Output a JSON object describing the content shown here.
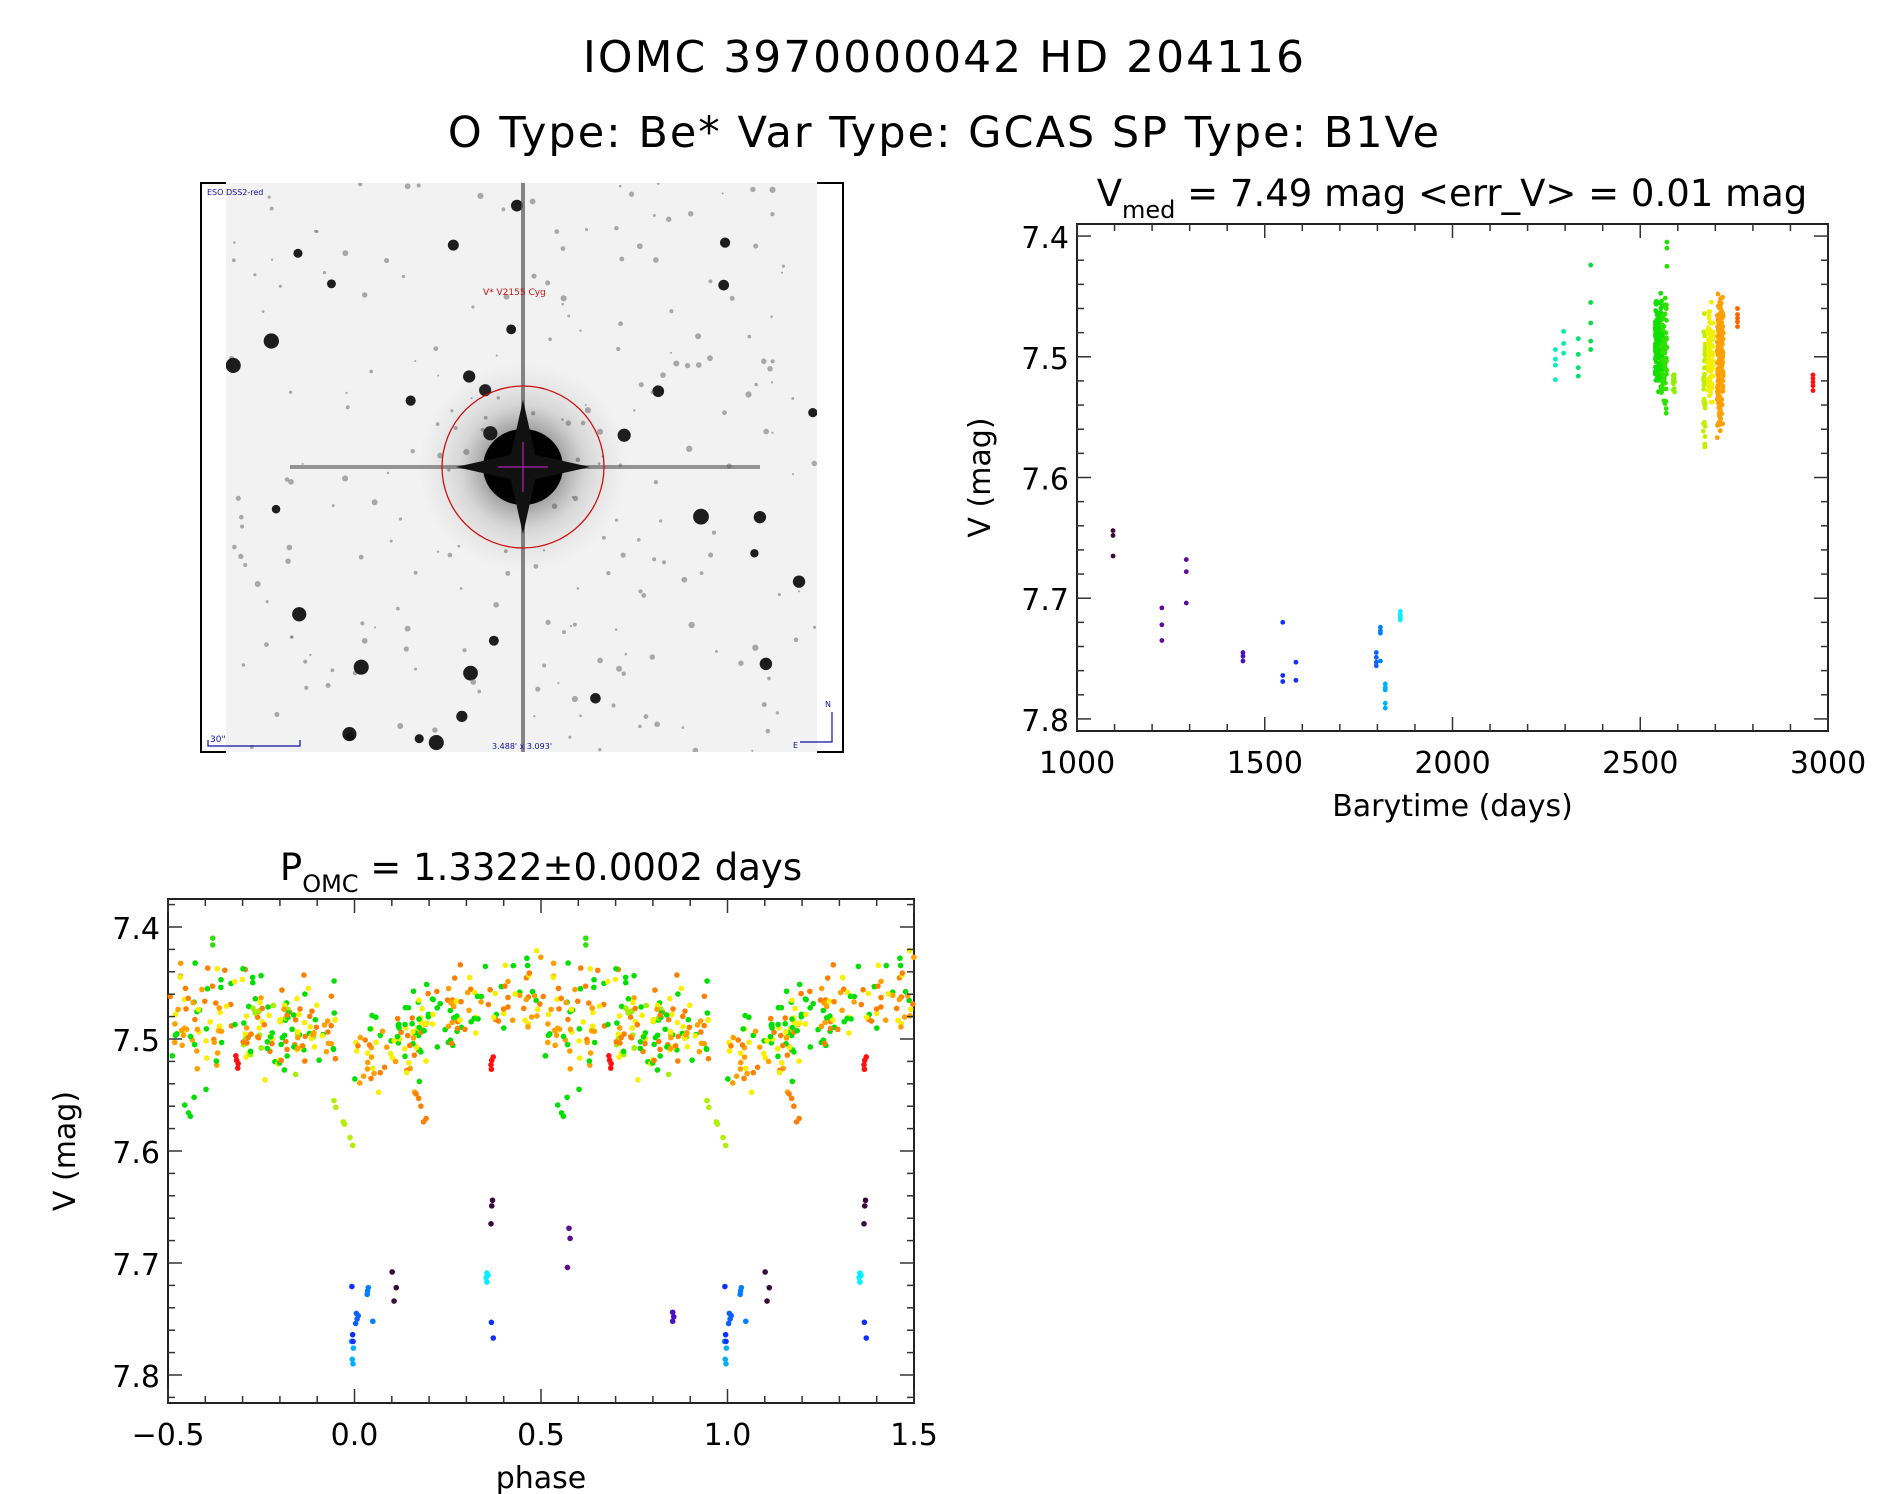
{
  "header": {
    "line1": "IOMC 3970000042    HD 204116",
    "line2": "O Type: Be*  Var Type: GCAS  SP Type: B1Ve"
  },
  "image_panel": {
    "survey_label": "ESO DSS2-red",
    "object_label": "V* V2155 Cyg",
    "scale_label": "30\"",
    "fov_label": "3.488' x 3.093'",
    "north_label": "N",
    "east_label": "E",
    "colors": {
      "object_label": "#d01010",
      "annotations": "#1010a0",
      "circle": "#cc1010",
      "crosshair": "#b020b0"
    }
  },
  "chart_data": [
    {
      "type": "scatter",
      "id": "lightcurve",
      "title_main": "V",
      "title_sub": "med",
      "title_rest": " = 7.49 mag <err_V> = 0.01 mag",
      "xlabel": "Barytime (days)",
      "ylabel": "V (mag)",
      "xlim": [
        1000,
        3000
      ],
      "ylim": [
        7.39,
        7.81
      ],
      "y_inverted": true,
      "xticks": [
        1000,
        1500,
        2000,
        2500,
        3000
      ],
      "xtick_labels": [
        "1000",
        "1500",
        "2000",
        "2500",
        "3000"
      ],
      "x_minor_step": 100,
      "yticks": [
        7.4,
        7.5,
        7.6,
        7.7,
        7.8
      ],
      "ytick_labels": [
        "7.4",
        "7.5",
        "7.6",
        "7.7",
        "7.8"
      ],
      "y_minor_step": 0.02,
      "points": [
        [
          1096,
          7.644,
          "#3a0a3a"
        ],
        [
          1096,
          7.648,
          "#3a0a3a"
        ],
        [
          1096,
          7.665,
          "#3a0a3a"
        ],
        [
          1226,
          7.708,
          "#5a1090"
        ],
        [
          1226,
          7.722,
          "#5a1090"
        ],
        [
          1226,
          7.735,
          "#5a1090"
        ],
        [
          1291,
          7.668,
          "#5a1090"
        ],
        [
          1291,
          7.678,
          "#5a1090"
        ],
        [
          1291,
          7.704,
          "#5a1090"
        ],
        [
          1442,
          7.745,
          "#4b10c0"
        ],
        [
          1442,
          7.748,
          "#4b10c0"
        ],
        [
          1442,
          7.752,
          "#4b10c0"
        ],
        [
          1548,
          7.72,
          "#1030ff"
        ],
        [
          1548,
          7.764,
          "#1030ff"
        ],
        [
          1548,
          7.769,
          "#1030ff"
        ],
        [
          1583,
          7.753,
          "#1030ff"
        ],
        [
          1583,
          7.768,
          "#1030ff"
        ],
        [
          1797,
          7.745,
          "#1060ff"
        ],
        [
          1797,
          7.749,
          "#1060ff"
        ],
        [
          1797,
          7.753,
          "#1060ff"
        ],
        [
          1797,
          7.756,
          "#1060ff"
        ],
        [
          1808,
          7.724,
          "#0080ff"
        ],
        [
          1808,
          7.727,
          "#0080ff"
        ],
        [
          1808,
          7.729,
          "#0080ff"
        ],
        [
          1808,
          7.752,
          "#0080ff"
        ],
        [
          1821,
          7.771,
          "#00b0ff"
        ],
        [
          1821,
          7.774,
          "#00b0ff"
        ],
        [
          1821,
          7.776,
          "#00b0ff"
        ],
        [
          1821,
          7.787,
          "#00b0ff"
        ],
        [
          1821,
          7.791,
          "#00b0ff"
        ],
        [
          1861,
          7.711,
          "#00f0ff"
        ],
        [
          1861,
          7.714,
          "#00f0ff"
        ],
        [
          1861,
          7.716,
          "#00f0ff"
        ],
        [
          1861,
          7.718,
          "#00f0ff"
        ],
        [
          2274,
          7.494,
          "#00f0c0"
        ],
        [
          2274,
          7.502,
          "#00f0c0"
        ],
        [
          2274,
          7.507,
          "#00f0c0"
        ],
        [
          2274,
          7.519,
          "#00f0c0"
        ],
        [
          2296,
          7.479,
          "#00f0a0"
        ],
        [
          2296,
          7.489,
          "#00f0a0"
        ],
        [
          2296,
          7.497,
          "#00f0a0"
        ],
        [
          2335,
          7.485,
          "#00e070"
        ],
        [
          2335,
          7.498,
          "#00e070"
        ],
        [
          2335,
          7.509,
          "#00e070"
        ],
        [
          2335,
          7.516,
          "#00e070"
        ],
        [
          2368,
          7.424,
          "#00e040"
        ],
        [
          2368,
          7.455,
          "#00e040"
        ],
        [
          2368,
          7.472,
          "#00e040"
        ],
        [
          2368,
          7.487,
          "#00e040"
        ],
        [
          2368,
          7.494,
          "#00e040"
        ],
        [
          2571,
          7.405,
          "#20e000"
        ],
        [
          2571,
          7.41,
          "#20e000"
        ],
        [
          2571,
          7.425,
          "#20e000"
        ],
        [
          2759,
          7.46,
          "#ff6000"
        ],
        [
          2759,
          7.465,
          "#ff6000"
        ],
        [
          2759,
          7.468,
          "#ff6000"
        ],
        [
          2759,
          7.471,
          "#ff6000"
        ],
        [
          2759,
          7.475,
          "#ff6000"
        ],
        [
          2960,
          7.515,
          "#ff1010"
        ],
        [
          2960,
          7.518,
          "#ff1010"
        ],
        [
          2960,
          7.521,
          "#ff1010"
        ],
        [
          2960,
          7.524,
          "#ff1010"
        ],
        [
          2960,
          7.528,
          "#ff1010"
        ]
      ],
      "clusters": [
        {
          "t": [
            2540,
            2560
          ],
          "mag": [
            7.44,
            7.535
          ],
          "n": 180,
          "color": "#10e000"
        },
        {
          "t": [
            2555,
            2572
          ],
          "mag": [
            7.43,
            7.57
          ],
          "n": 60,
          "color": "#30e000"
        },
        {
          "t": [
            2588,
            2592
          ],
          "mag": [
            7.503,
            7.54
          ],
          "n": 12,
          "color": "#90f000"
        },
        {
          "t": [
            2668,
            2673
          ],
          "mag": [
            7.45,
            7.6
          ],
          "n": 40,
          "color": "#c0f000"
        },
        {
          "t": [
            2680,
            2694
          ],
          "mag": [
            7.43,
            7.555
          ],
          "n": 90,
          "color": "#f0f000"
        },
        {
          "t": [
            2705,
            2721
          ],
          "mag": [
            7.42,
            7.58
          ],
          "n": 170,
          "color": "#ffa000"
        }
      ]
    },
    {
      "type": "scatter",
      "id": "phase-folded",
      "title_main": "P",
      "title_sub": "OMC",
      "title_rest": " = 1.3322±0.0002 days",
      "xlabel": "phase",
      "ylabel": "V (mag)",
      "xlim": [
        -0.5,
        1.5
      ],
      "ylim": [
        7.375,
        7.825
      ],
      "y_inverted": true,
      "xticks": [
        -0.5,
        0.0,
        0.5,
        1.0,
        1.5
      ],
      "xtick_labels": [
        "−0.5",
        "0.0",
        "0.5",
        "1.0",
        "1.5"
      ],
      "x_minor_step": 0.1,
      "yticks": [
        7.4,
        7.5,
        7.6,
        7.7,
        7.8
      ],
      "ytick_labels": [
        "7.4",
        "7.5",
        "7.6",
        "7.7",
        "7.8"
      ],
      "y_minor_step": 0.02,
      "repeat_period": 1.0,
      "points": [
        [
          0.575,
          7.669,
          "#5a1090"
        ],
        [
          0.578,
          7.678,
          "#5a1090"
        ],
        [
          0.571,
          7.704,
          "#5a1090"
        ],
        [
          0.853,
          7.744,
          "#4b10c0"
        ],
        [
          0.856,
          7.748,
          "#4b10c0"
        ],
        [
          0.853,
          7.752,
          "#4b10c0"
        ],
        [
          -0.007,
          7.721,
          "#1030ff"
        ],
        [
          -0.005,
          7.764,
          "#1030ff"
        ],
        [
          -0.008,
          7.77,
          "#00a0ff"
        ],
        [
          -0.004,
          7.77,
          "#1030ff"
        ],
        [
          -0.003,
          7.776,
          "#00b0ff"
        ],
        [
          -0.006,
          7.786,
          "#00b0ff"
        ],
        [
          -0.004,
          7.79,
          "#00b0ff"
        ],
        [
          0.005,
          7.745,
          "#1060ff"
        ],
        [
          0.01,
          7.747,
          "#1060ff"
        ],
        [
          0.007,
          7.75,
          "#1060ff"
        ],
        [
          0.003,
          7.754,
          "#1060ff"
        ],
        [
          0.037,
          7.722,
          "#0080ff"
        ],
        [
          0.035,
          7.725,
          "#0080ff"
        ],
        [
          0.034,
          7.728,
          "#0080ff"
        ],
        [
          0.049,
          7.752,
          "#0080ff"
        ],
        [
          0.101,
          7.708,
          "#3a0a3a"
        ],
        [
          0.112,
          7.722,
          "#3a0a3a"
        ],
        [
          0.106,
          7.734,
          "#3a0a3a"
        ],
        [
          0.37,
          7.644,
          "#3a0a3a"
        ],
        [
          0.368,
          7.649,
          "#3a0a3a"
        ],
        [
          0.366,
          7.665,
          "#3a0a3a"
        ],
        [
          0.355,
          7.709,
          "#00f0ff"
        ],
        [
          0.358,
          7.711,
          "#00f0ff"
        ],
        [
          0.353,
          7.713,
          "#00f0ff"
        ],
        [
          0.355,
          7.717,
          "#00f0ff"
        ],
        [
          0.367,
          7.753,
          "#1030ff"
        ],
        [
          0.372,
          7.767,
          "#1030ff"
        ],
        [
          -0.318,
          7.515,
          "#ff1010"
        ],
        [
          -0.316,
          7.519,
          "#ff1010"
        ],
        [
          -0.312,
          7.522,
          "#ff1010"
        ],
        [
          -0.313,
          7.526,
          "#ff1010"
        ],
        [
          0.372,
          7.516,
          "#ff1010"
        ],
        [
          0.368,
          7.519,
          "#ff1010"
        ],
        [
          0.366,
          7.523,
          "#ff1010"
        ],
        [
          0.367,
          7.527,
          "#ff1010"
        ],
        [
          -0.055,
          7.555,
          "#b0f000"
        ],
        [
          -0.05,
          7.561,
          "#b0f000"
        ],
        [
          -0.03,
          7.574,
          "#b0f000"
        ],
        [
          -0.027,
          7.576,
          "#b0f000"
        ],
        [
          -0.012,
          7.588,
          "#b0f000"
        ],
        [
          -0.005,
          7.595,
          "#b0f000"
        ],
        [
          0.165,
          7.549,
          "#ff8000"
        ],
        [
          0.172,
          7.553,
          "#ff8000"
        ],
        [
          0.178,
          7.56,
          "#ff8000"
        ],
        [
          0.185,
          7.574,
          "#ff8000"
        ],
        [
          0.192,
          7.571,
          "#ff8000"
        ],
        [
          -0.455,
          7.559,
          "#00e000"
        ],
        [
          -0.44,
          7.569,
          "#00e000"
        ],
        [
          -0.445,
          7.566,
          "#00e000"
        ],
        [
          -0.43,
          7.552,
          "#00e000"
        ],
        [
          -0.398,
          7.545,
          "#00e000"
        ],
        [
          -0.38,
          7.41,
          "#30e000"
        ],
        [
          -0.38,
          7.416,
          "#30e000"
        ]
      ],
      "clusters": [
        {
          "phase": [
            -0.5,
            -0.25
          ],
          "mag": [
            7.42,
            7.51
          ],
          "n": 55,
          "colors": [
            "#ffa000",
            "#ff8000",
            "#f8f000",
            "#00e000"
          ]
        },
        {
          "phase": [
            -0.5,
            -0.35
          ],
          "mag": [
            7.47,
            7.54
          ],
          "n": 25,
          "colors": [
            "#00e000",
            "#f8f000",
            "#ffa000"
          ]
        },
        {
          "phase": [
            -0.3,
            -0.1
          ],
          "mag": [
            7.46,
            7.54
          ],
          "n": 80,
          "colors": [
            "#00e000",
            "#00e000",
            "#a0f000",
            "#f8f000",
            "#ff8000"
          ]
        },
        {
          "phase": [
            -0.2,
            -0.05
          ],
          "mag": [
            7.44,
            7.53
          ],
          "n": 45,
          "colors": [
            "#ff8000",
            "#00e000",
            "#f8f000",
            "#ffa000"
          ]
        },
        {
          "phase": [
            0.0,
            0.2
          ],
          "mag": [
            7.47,
            7.55
          ],
          "n": 55,
          "colors": [
            "#ffa000",
            "#f8f000",
            "#00e000",
            "#ff8000"
          ]
        },
        {
          "phase": [
            0.1,
            0.3
          ],
          "mag": [
            7.45,
            7.52
          ],
          "n": 55,
          "colors": [
            "#00e000",
            "#00e000",
            "#ff8000",
            "#f8f000"
          ]
        },
        {
          "phase": [
            0.25,
            0.5
          ],
          "mag": [
            7.42,
            7.51
          ],
          "n": 70,
          "colors": [
            "#00e000",
            "#ffa000",
            "#f8f000",
            "#ff8000"
          ]
        }
      ]
    }
  ]
}
